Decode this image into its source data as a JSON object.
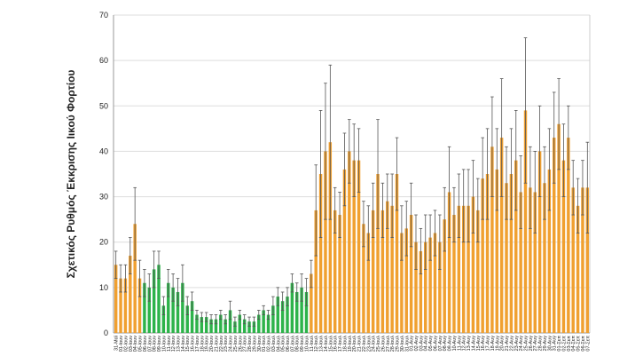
{
  "chart_data": {
    "type": "bar",
    "y_label": "Σχετικός Ρυθμός Έκκρισης Ιικού Φορτίου",
    "ylim": [
      0,
      70
    ],
    "yticks": [
      0,
      10,
      20,
      30,
      40,
      50,
      60,
      70
    ],
    "grid": true,
    "categories": [
      "31-Μαϊ",
      "01-Ιουν",
      "02-Ιουν",
      "03-Ιουν",
      "04-Ιουν",
      "05-Ιουν",
      "06-Ιουν",
      "07-Ιουν",
      "08-Ιουν",
      "09-Ιουν",
      "10-Ιουν",
      "11-Ιουν",
      "12-Ιουν",
      "13-Ιουν",
      "14-Ιουν",
      "15-Ιουν",
      "16-Ιουν",
      "17-Ιουν",
      "18-Ιουν",
      "19-Ιουν",
      "20-Ιουν",
      "21-Ιουν",
      "22-Ιουν",
      "23-Ιουν",
      "24-Ιουν",
      "25-Ιουν",
      "26-Ιουν",
      "27-Ιουν",
      "28-Ιουν",
      "29-Ιουν",
      "30-Ιουν",
      "01-Ιουλ",
      "02-Ιουλ",
      "03-Ιουλ",
      "04-Ιουλ",
      "05-Ιουλ",
      "06-Ιουλ",
      "07-Ιουλ",
      "08-Ιουλ",
      "09-Ιουλ",
      "10-Ιουλ",
      "11-Ιουλ",
      "12-Ιουλ",
      "13-Ιουλ",
      "14-Ιουλ",
      "15-Ιουλ",
      "16-Ιουλ",
      "17-Ιουλ",
      "18-Ιουλ",
      "19-Ιουλ",
      "20-Ιουλ",
      "21-Ιουλ",
      "22-Ιουλ",
      "23-Ιουλ",
      "24-Ιουλ",
      "25-Ιουλ",
      "26-Ιουλ",
      "27-Ιουλ",
      "28-Ιουλ",
      "29-Ιουλ",
      "30-Ιουλ",
      "31-Ιουλ",
      "01-Αυγ",
      "02-Αυγ",
      "03-Αυγ",
      "04-Αυγ",
      "05-Αυγ",
      "06-Αυγ",
      "07-Αυγ",
      "08-Αυγ",
      "09-Αυγ",
      "10-Αυγ",
      "11-Αυγ",
      "12-Αυγ",
      "13-Αυγ",
      "14-Αυγ",
      "15-Αυγ",
      "16-Αυγ",
      "17-Αυγ",
      "18-Αυγ",
      "19-Αυγ",
      "20-Αυγ",
      "21-Αυγ",
      "22-Αυγ",
      "23-Αυγ",
      "24-Αυγ",
      "25-Αυγ",
      "26-Αυγ",
      "27-Αυγ",
      "28-Αυγ",
      "29-Αυγ",
      "30-Αυγ",
      "31-Αυγ",
      "01-Σεπ",
      "02-Σεπ",
      "03-Σεπ",
      "04-Σεπ",
      "05-Σεπ",
      "06-Σεπ",
      "07-Σεπ"
    ],
    "values": [
      15,
      12,
      12,
      17,
      24,
      12,
      11,
      10,
      14,
      15,
      6,
      11,
      10,
      9,
      11,
      6,
      7,
      4,
      3.5,
      3.5,
      3,
      3,
      4,
      3,
      5,
      2.5,
      4,
      3,
      2.5,
      2.5,
      4,
      5,
      4,
      6,
      8,
      7,
      8,
      11,
      9,
      10,
      9,
      13,
      27,
      35,
      40,
      42,
      27,
      26,
      36,
      40,
      38,
      38,
      24,
      22,
      27,
      35,
      27,
      29,
      28,
      35,
      22,
      23,
      26,
      20,
      18,
      20,
      21,
      22,
      20,
      25,
      31,
      26,
      28,
      28,
      28,
      30,
      27,
      34,
      35,
      41,
      36,
      43,
      33,
      35,
      38,
      31,
      49,
      32,
      31,
      40,
      33,
      36,
      43,
      46,
      38,
      43,
      32,
      28,
      32,
      32
    ],
    "errors": [
      3,
      3,
      3,
      4,
      8,
      4,
      3,
      3,
      4,
      3,
      2,
      3,
      3,
      3,
      4,
      2,
      2,
      1,
      1,
      1,
      1,
      1,
      1,
      1,
      2,
      1,
      1,
      1,
      1,
      1,
      1,
      1,
      1,
      2,
      2,
      2,
      2,
      2,
      2,
      3,
      3,
      3,
      10,
      14,
      15,
      17,
      5,
      5,
      8,
      7,
      8,
      7,
      5,
      6,
      6,
      12,
      6,
      6,
      7,
      8,
      6,
      6,
      7,
      6,
      5,
      6,
      5,
      5,
      6,
      7,
      10,
      6,
      7,
      8,
      8,
      8,
      7,
      9,
      10,
      11,
      9,
      13,
      8,
      10,
      11,
      8,
      16,
      9,
      9,
      10,
      8,
      9,
      10,
      10,
      8,
      7,
      6,
      6,
      6,
      10
    ],
    "colors": [
      "#f0a030",
      "#f0a030",
      "#f0a030",
      "#f0a030",
      "#f0a030",
      "#f0a030",
      "#2db34a",
      "#2db34a",
      "#2db34a",
      "#2db34a",
      "#2db34a",
      "#2db34a",
      "#2db34a",
      "#2db34a",
      "#2db34a",
      "#2db34a",
      "#2db34a",
      "#2db34a",
      "#2db34a",
      "#2db34a",
      "#2db34a",
      "#2db34a",
      "#2db34a",
      "#2db34a",
      "#2db34a",
      "#2db34a",
      "#2db34a",
      "#2db34a",
      "#2db34a",
      "#2db34a",
      "#2db34a",
      "#2db34a",
      "#2db34a",
      "#2db34a",
      "#2db34a",
      "#2db34a",
      "#2db34a",
      "#2db34a",
      "#2db34a",
      "#2db34a",
      "#2db34a",
      "#f0a030",
      "#f0a030",
      "#f0a030",
      "#f0a030",
      "#f0a030",
      "#f0a030",
      "#f0a030",
      "#f0a030",
      "#f0a030",
      "#f0a030",
      "#f0a030",
      "#f0a030",
      "#f0a030",
      "#f0a030",
      "#f0a030",
      "#f0a030",
      "#f0a030",
      "#f0a030",
      "#f0a030",
      "#f0a030",
      "#f0a030",
      "#f0a030",
      "#f0a030",
      "#f0a030",
      "#f0a030",
      "#f0a030",
      "#f0a030",
      "#f0a030",
      "#f0a030",
      "#f0a030",
      "#f0a030",
      "#f0a030",
      "#f0a030",
      "#f0a030",
      "#f0a030",
      "#f0a030",
      "#f0a030",
      "#f0a030",
      "#f0a030",
      "#f0a030",
      "#f0a030",
      "#f0a030",
      "#f0a030",
      "#f0a030",
      "#f0a030",
      "#f0a030",
      "#f0a030",
      "#f0a030",
      "#f0a030",
      "#f0a030",
      "#f0a030",
      "#f0a030",
      "#f0a030",
      "#f0a030",
      "#f0a030",
      "#f0a030",
      "#f0a030",
      "#f0a030",
      "#f0a030"
    ]
  }
}
